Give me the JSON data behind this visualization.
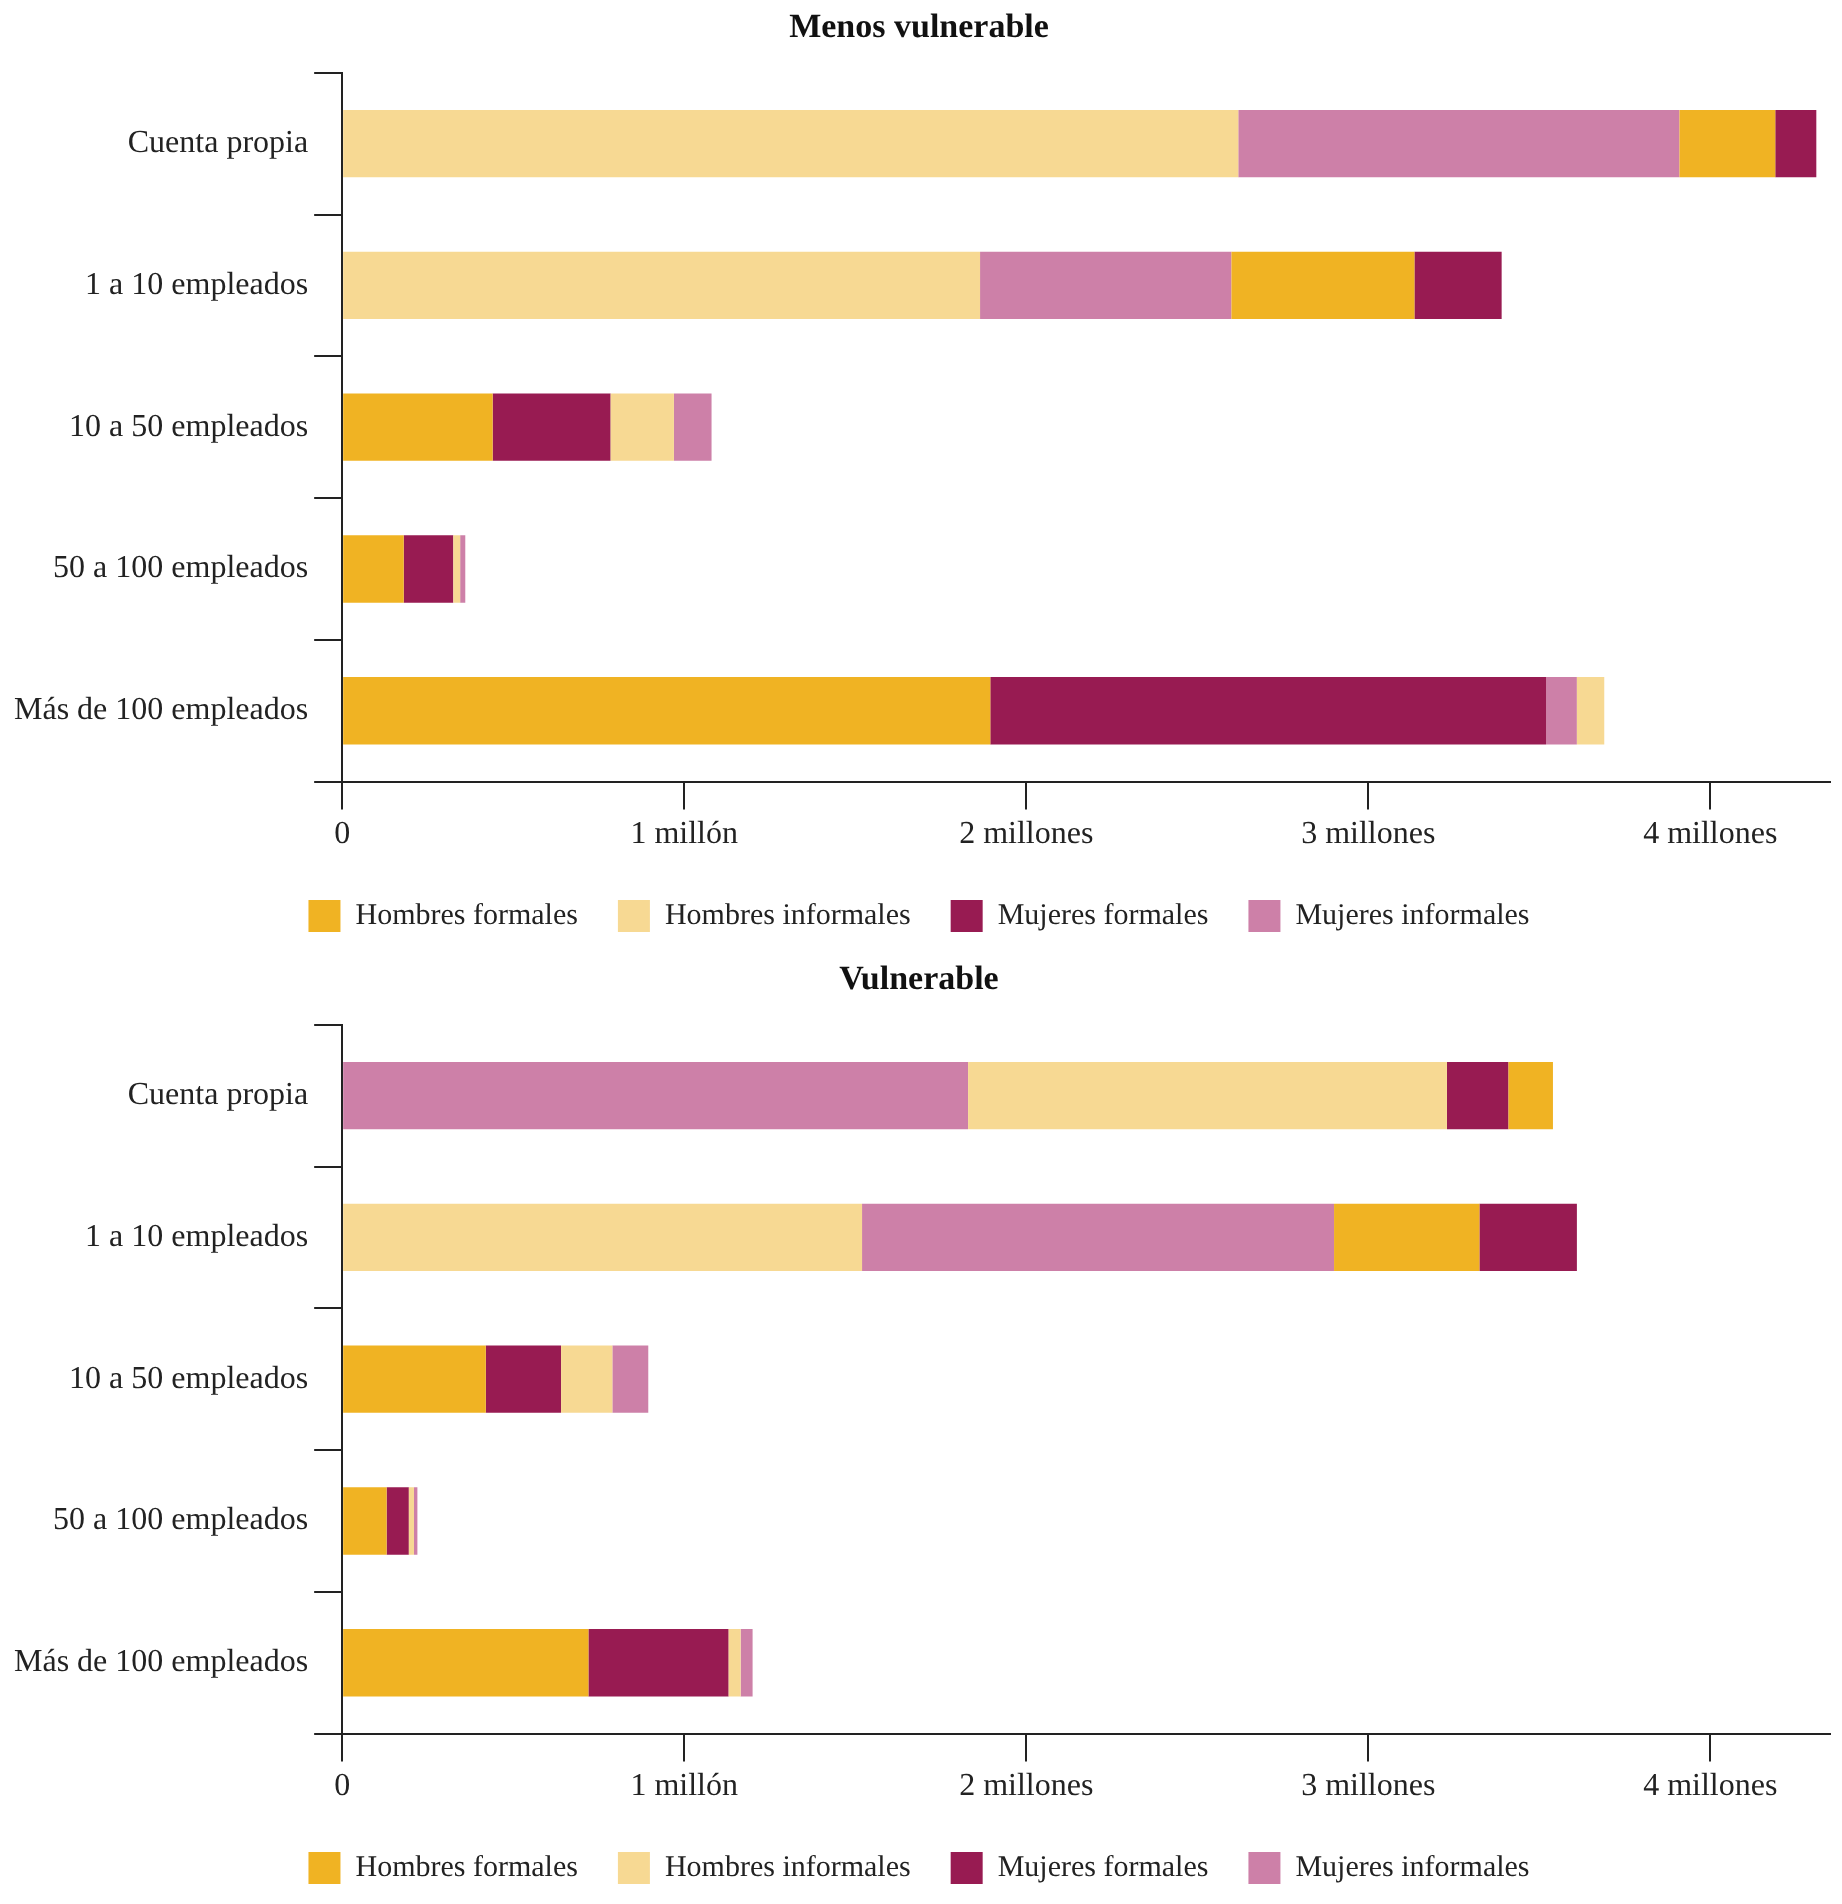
{
  "chart_data": [
    {
      "type": "bar",
      "title": "Menos vulnerable",
      "orientation": "horizontal",
      "legend": "bottom",
      "grid": false,
      "categories": [
        "Cuenta propia",
        "1 a 10 empleados",
        "10 a 50 empleados",
        "50 a 100 empleados",
        "Más de 100 empleados"
      ],
      "xlim": [
        0,
        4.35
      ],
      "xticks": [
        0,
        {
          "value": 1,
          "label": "1 millón"
        },
        {
          "value": 2,
          "label": "2 millones"
        },
        {
          "value": 3,
          "label": "3 millones"
        },
        {
          "value": 4,
          "label": "4 millones"
        }
      ],
      "series": [
        {
          "name": "Hombres formales",
          "color": "#f0b323",
          "base": [
            3.91,
            2.6,
            0,
            0,
            0
          ],
          "values": [
            0.28,
            0.535,
            0.44,
            0.18,
            1.895
          ]
        },
        {
          "name": "Hombres informales",
          "color": "#f7d993",
          "base": [
            0,
            0,
            0.785,
            0.325,
            3.61
          ],
          "values": [
            2.62,
            1.865,
            0.185,
            0.02,
            0.08
          ]
        },
        {
          "name": "Mujeres formales",
          "color": "#981b52",
          "base": [
            4.19,
            3.135,
            0.44,
            0.18,
            1.895
          ],
          "values": [
            0.12,
            0.255,
            0.345,
            0.145,
            1.625
          ]
        },
        {
          "name": "Mujeres informales",
          "color": "#cd80a8",
          "base": [
            2.62,
            1.865,
            0.97,
            0.345,
            3.52
          ],
          "values": [
            1.29,
            0.735,
            0.11,
            0.015,
            0.09
          ]
        }
      ]
    },
    {
      "type": "bar",
      "title": "Vulnerable",
      "orientation": "horizontal",
      "legend": "bottom",
      "grid": false,
      "categories": [
        "Cuenta propia",
        "1 a 10 empleados",
        "10 a 50 empleados",
        "50 a 100 empleados",
        "Más de 100 empleados"
      ],
      "xlim": [
        0,
        4.35
      ],
      "xticks": [
        0,
        {
          "value": 1,
          "label": "1 millón"
        },
        {
          "value": 2,
          "label": "2 millones"
        },
        {
          "value": 3,
          "label": "3 millones"
        },
        {
          "value": 4,
          "label": "4 millones"
        }
      ],
      "series": [
        {
          "name": "Hombres formales",
          "color": "#f0b323",
          "base": [
            3.41,
            2.9,
            0,
            0,
            0
          ],
          "values": [
            0.13,
            0.425,
            0.42,
            0.13,
            0.72
          ]
        },
        {
          "name": "Hombres informales",
          "color": "#f7d993",
          "base": [
            1.83,
            0,
            0.64,
            0.195,
            1.13
          ],
          "values": [
            1.4,
            1.52,
            0.15,
            0.015,
            0.035
          ]
        },
        {
          "name": "Mujeres formales",
          "color": "#981b52",
          "base": [
            3.23,
            3.325,
            0.42,
            0.13,
            0.72
          ],
          "values": [
            0.18,
            0.285,
            0.22,
            0.065,
            0.41
          ]
        },
        {
          "name": "Mujeres informales",
          "color": "#cd80a8",
          "base": [
            0,
            1.52,
            0.79,
            0.21,
            1.165
          ],
          "values": [
            1.83,
            1.38,
            0.105,
            0.01,
            0.035
          ]
        }
      ]
    }
  ]
}
